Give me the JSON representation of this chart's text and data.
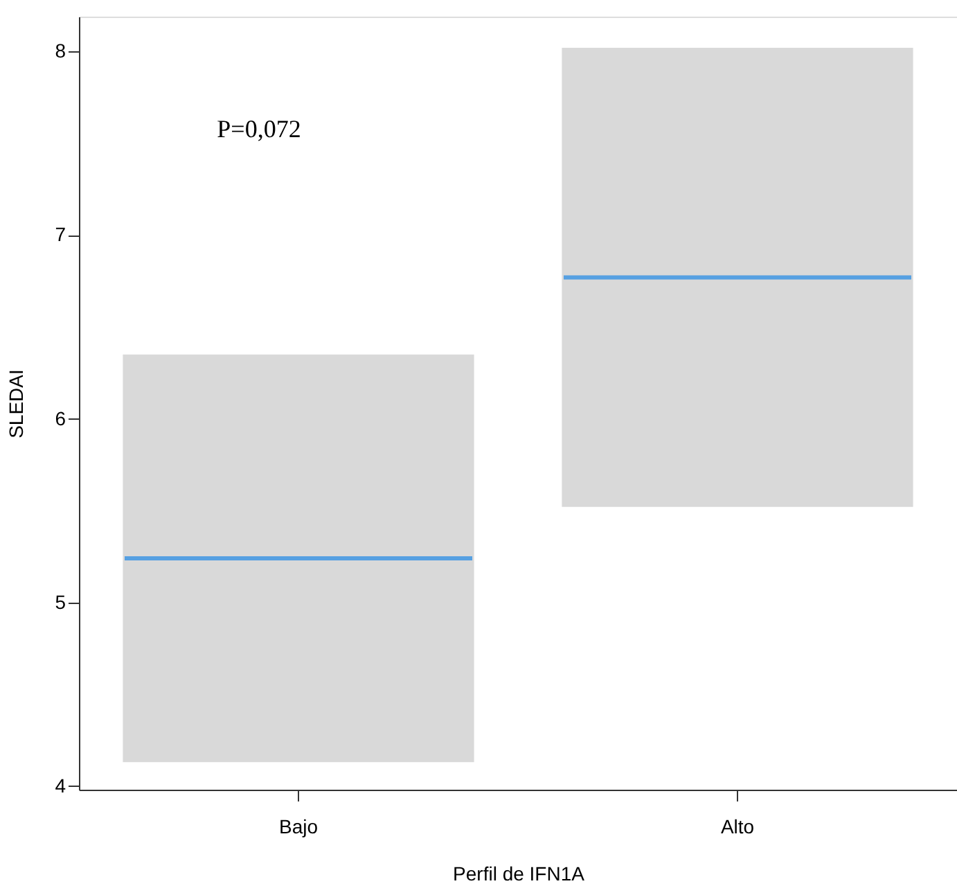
{
  "chart_data": {
    "type": "box",
    "xlabel": "Perfil de IFN1A",
    "ylabel": "SLEDAI",
    "categories": [
      "Bajo",
      "Alto"
    ],
    "boxes": [
      {
        "low": 4.13,
        "q1": 4.13,
        "median": 5.24,
        "q3": 6.35,
        "high": 6.35
      },
      {
        "low": 5.52,
        "q1": 5.52,
        "median": 6.77,
        "q3": 8.02,
        "high": 8.02
      }
    ],
    "color": "#d9d9d9",
    "ylim": [
      3.98,
      8.19
    ],
    "yticks": [
      4,
      5,
      6,
      7,
      8
    ],
    "grid": false,
    "annotations": [
      "P=0,072"
    ]
  }
}
